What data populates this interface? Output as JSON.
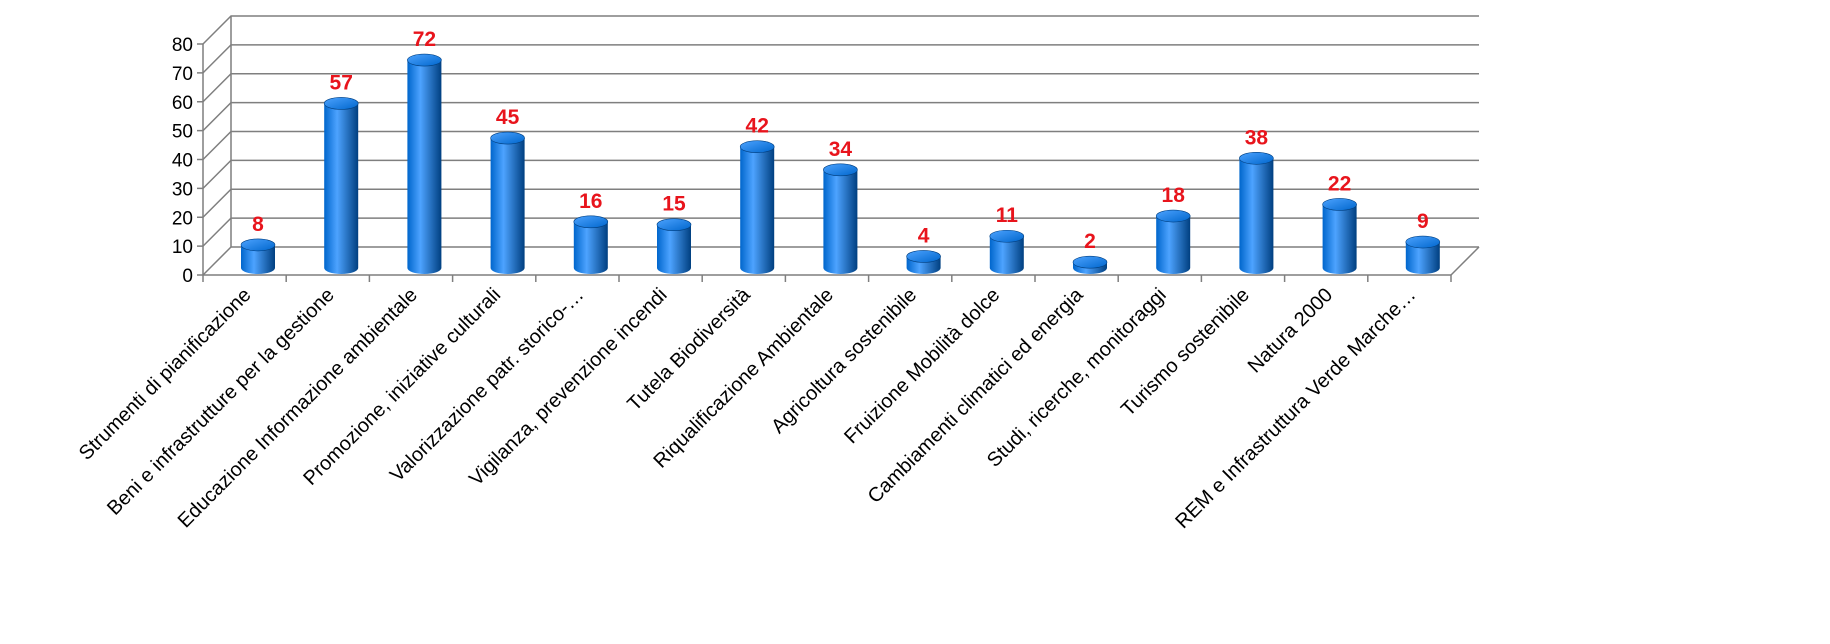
{
  "chart_data": {
    "type": "bar",
    "style": "3d-cylinder",
    "categories": [
      "Strumenti di pianificazione",
      "Beni e infrastrutture per la gestione",
      "Educazione Informazione ambientale",
      "Promozione, iniziative culturali",
      "Valorizzazione patr. storico-…",
      "Vigilanza, prevenzione incendi",
      "Tutela Biodiversità",
      "Riqualificazione Ambientale",
      "Agricoltura sostenibile",
      "Fruizione Mobilità dolce",
      "Cambiamenti climatici ed energia",
      "Studi, ricerche, monitoraggi",
      "Turismo sostenibile",
      "Natura 2000",
      "REM e Infrastruttura Verde Marche…"
    ],
    "values": [
      8,
      57,
      72,
      45,
      16,
      15,
      42,
      34,
      4,
      11,
      2,
      18,
      38,
      22,
      9
    ],
    "ylim": [
      0,
      80
    ],
    "yticks": [
      0,
      10,
      20,
      30,
      40,
      50,
      60,
      70,
      80
    ],
    "grid": true,
    "legend": "none",
    "title": "",
    "xlabel": "",
    "ylabel": "",
    "colors": {
      "bar": "#0066cc",
      "bar_dark": "#003f80",
      "bar_light": "#4da3ff",
      "data_label": "#e8141c",
      "grid": "#7f7f7f"
    }
  }
}
